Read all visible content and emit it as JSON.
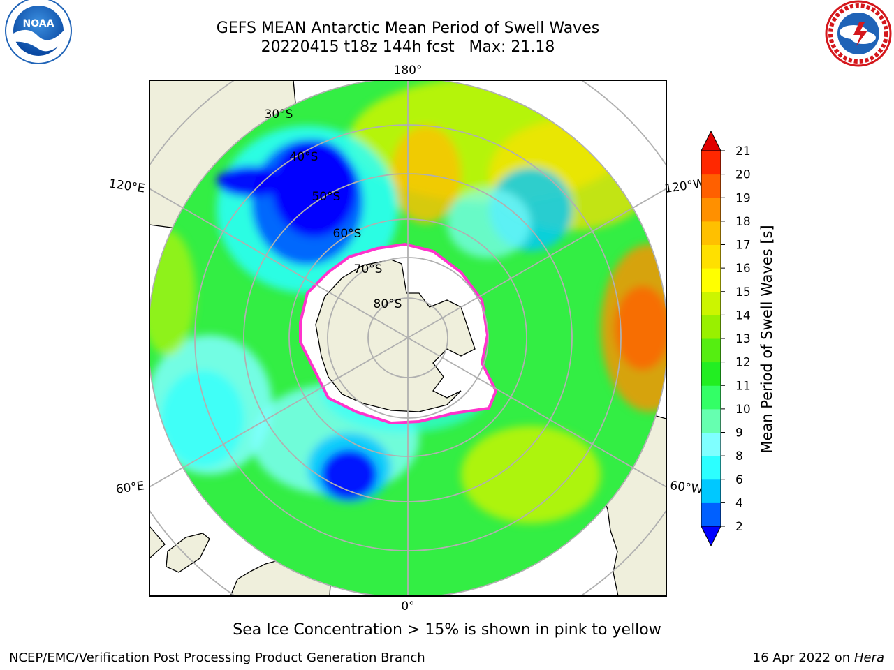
{
  "title_line1": "GEFS MEAN Antarctic Mean Period of Swell Waves",
  "title_line2": "20220415 t18z 144h fcst   Max: 21.18",
  "logos": {
    "left": {
      "text": "NOAA",
      "ring_text": "NATIONAL OCEANIC AND ATMOSPHERIC ADMINISTRATION · U.S. DEPARTMENT OF COMMERCE",
      "color": "#1f63b7"
    },
    "right": {
      "ring_text": "NATIONAL WEATHER SERVICE",
      "color": "#d4171c"
    }
  },
  "map": {
    "projection": "south-polar-stereographic",
    "longitude_labels": [
      "180°",
      "120°E",
      "120°W",
      "60°E",
      "60°W",
      "0°"
    ],
    "latitude_labels": [
      "30°S",
      "40°S",
      "50°S",
      "60°S",
      "70°S",
      "80°S"
    ],
    "land_color": "#efefdc",
    "sea_ice_note_color": "#ff33cc"
  },
  "colorbar": {
    "title": "Mean Period of Swell Waves [s]",
    "ticks": [
      "2",
      "4",
      "6",
      "8",
      "9",
      "10",
      "11",
      "12",
      "13",
      "14",
      "15",
      "16",
      "17",
      "18",
      "19",
      "20",
      "21"
    ],
    "colors": [
      "#0060ff",
      "#00c8ff",
      "#2cffff",
      "#7fffff",
      "#66ffb0",
      "#33ff66",
      "#22ee22",
      "#55ee11",
      "#99f000",
      "#ccf500",
      "#ffff00",
      "#ffe000",
      "#ffc000",
      "#ff9000",
      "#ff6000",
      "#ff2800"
    ],
    "under_color": "#0000ff",
    "over_color": "#e00000"
  },
  "sea_ice_note": "Sea Ice Concentration > 15% is shown in pink to yellow",
  "footer_left": "NCEP/EMC/Verification Post Processing Product Generation Branch",
  "footer_right_date": "16 Apr 2022 on",
  "footer_right_machine": "Hera"
}
